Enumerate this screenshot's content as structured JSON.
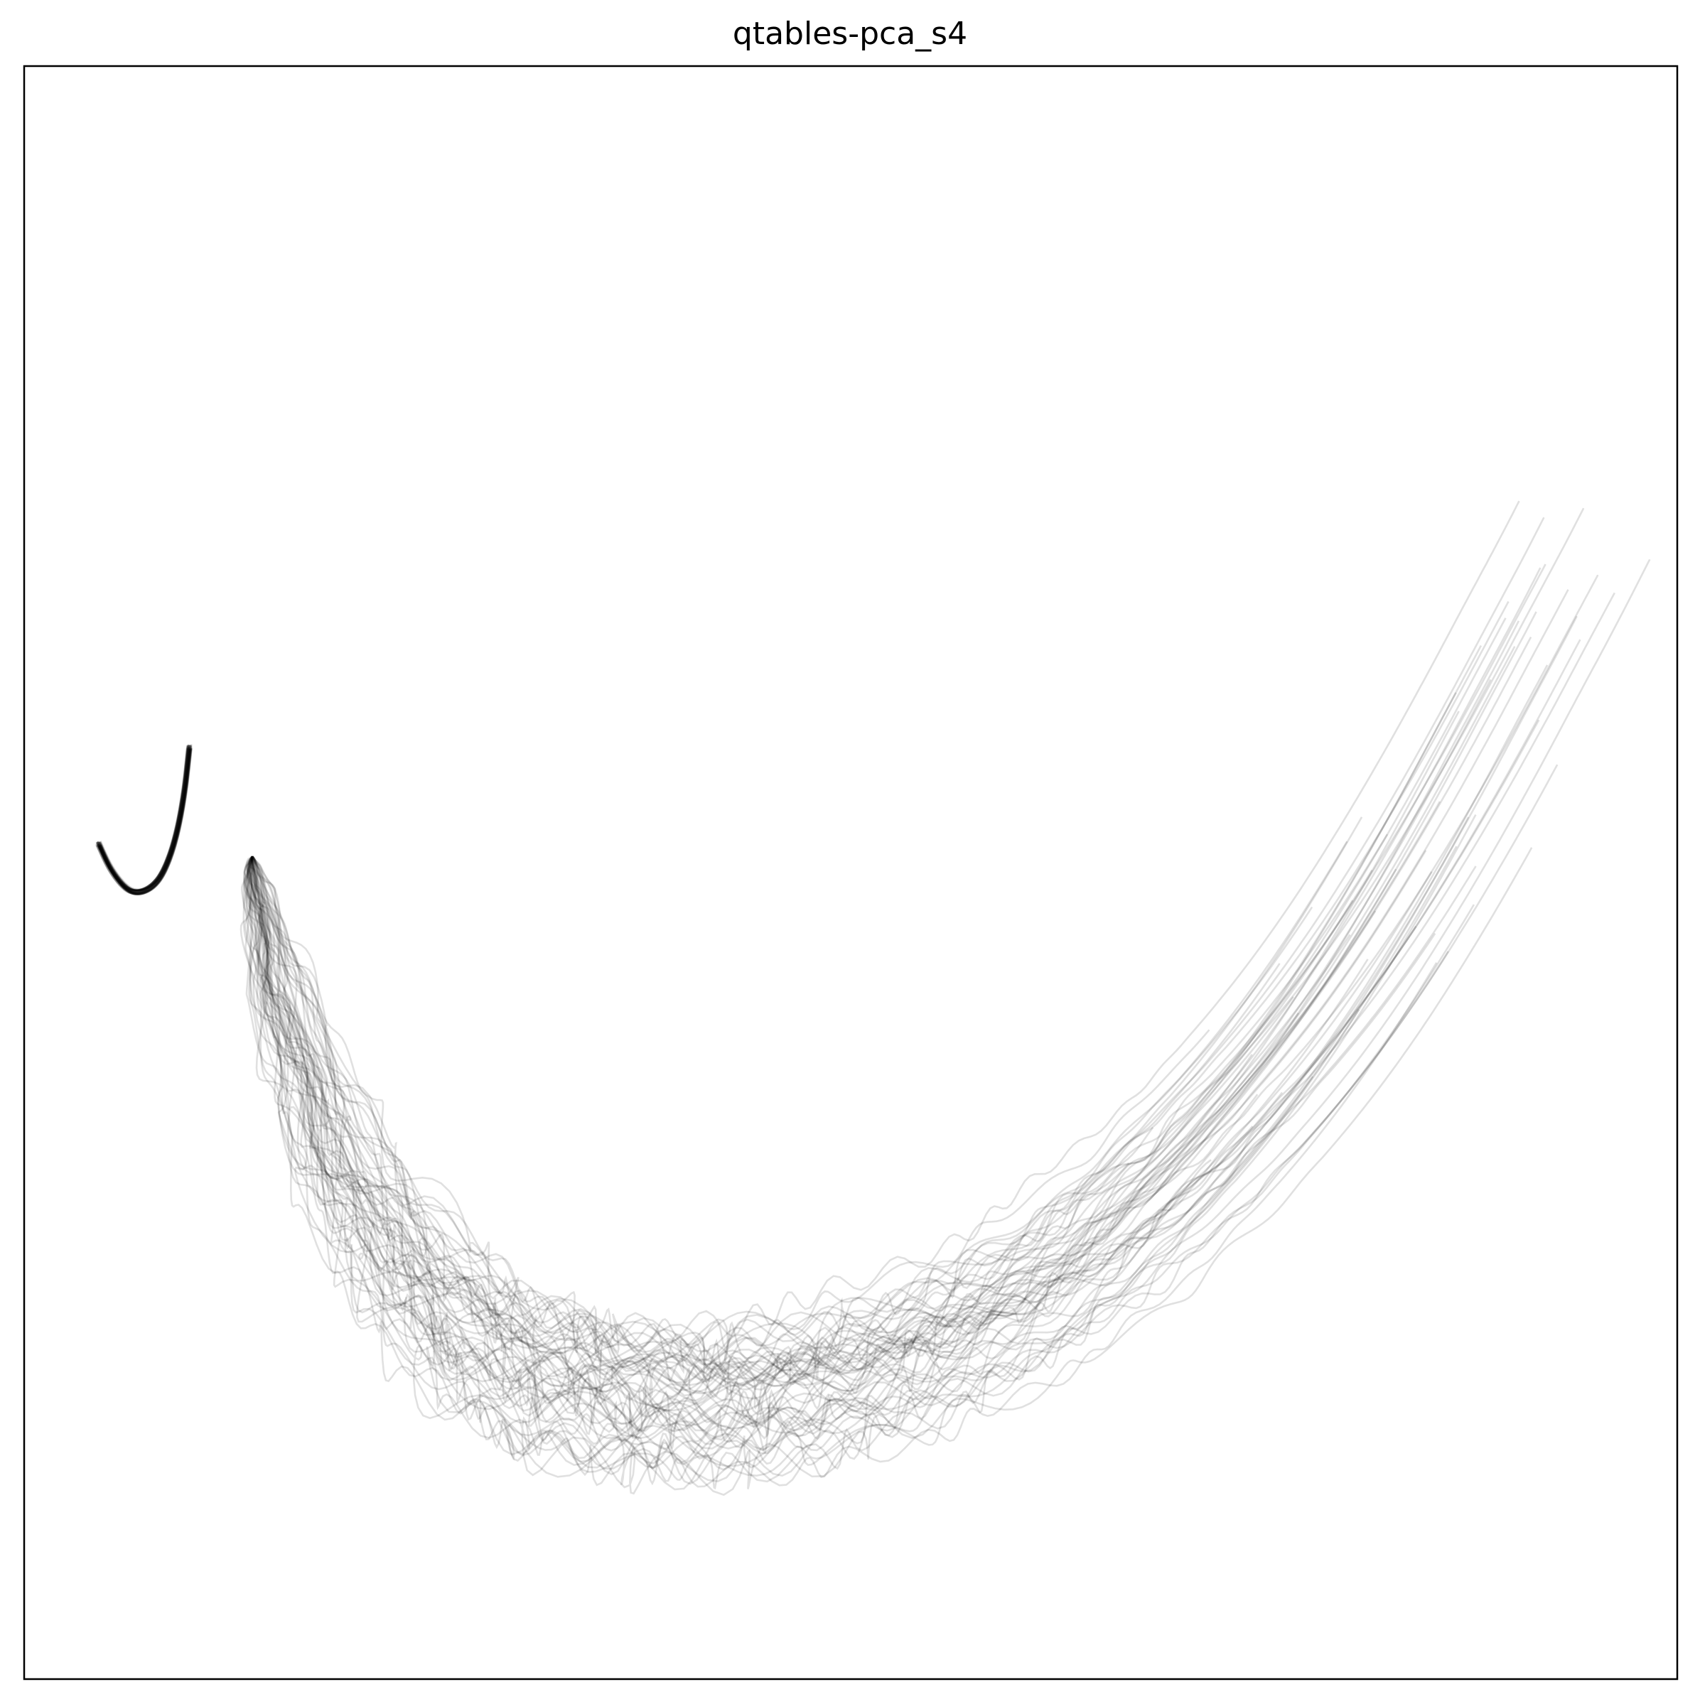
{
  "chart_data": {
    "type": "line",
    "title": "qtables-pca_s4",
    "xlabel": "",
    "ylabel": "",
    "xticks": [],
    "yticks": [],
    "xlim": [
      0,
      1
    ],
    "ylim": [
      0,
      1
    ],
    "grid": false,
    "legend": "none",
    "line_color": "#000000",
    "line_opacity": 0.12,
    "series_count": 60,
    "mean_path": {
      "x": [
        0.138,
        0.139,
        0.145,
        0.155,
        0.17,
        0.19,
        0.215,
        0.245,
        0.278,
        0.313,
        0.35,
        0.389,
        0.43,
        0.472,
        0.514,
        0.555,
        0.595,
        0.634,
        0.671,
        0.706,
        0.74,
        0.772,
        0.802,
        0.83,
        0.856,
        0.881,
        0.905,
        0.929,
        0.95
      ],
      "y": [
        0.51,
        0.498,
        0.47,
        0.43,
        0.38,
        0.33,
        0.283,
        0.243,
        0.211,
        0.19,
        0.178,
        0.172,
        0.172,
        0.178,
        0.19,
        0.206,
        0.226,
        0.252,
        0.282,
        0.316,
        0.353,
        0.393,
        0.436,
        0.481,
        0.526,
        0.572,
        0.618,
        0.664,
        0.706
      ]
    },
    "initial_hook": {
      "x": [
        0.045,
        0.052,
        0.06,
        0.067,
        0.075,
        0.082,
        0.088,
        0.093,
        0.097,
        0.1
      ],
      "y": [
        0.518,
        0.503,
        0.492,
        0.488,
        0.49,
        0.497,
        0.51,
        0.528,
        0.551,
        0.578
      ]
    },
    "start_point": {
      "x": 0.045,
      "y": 0.518
    }
  }
}
